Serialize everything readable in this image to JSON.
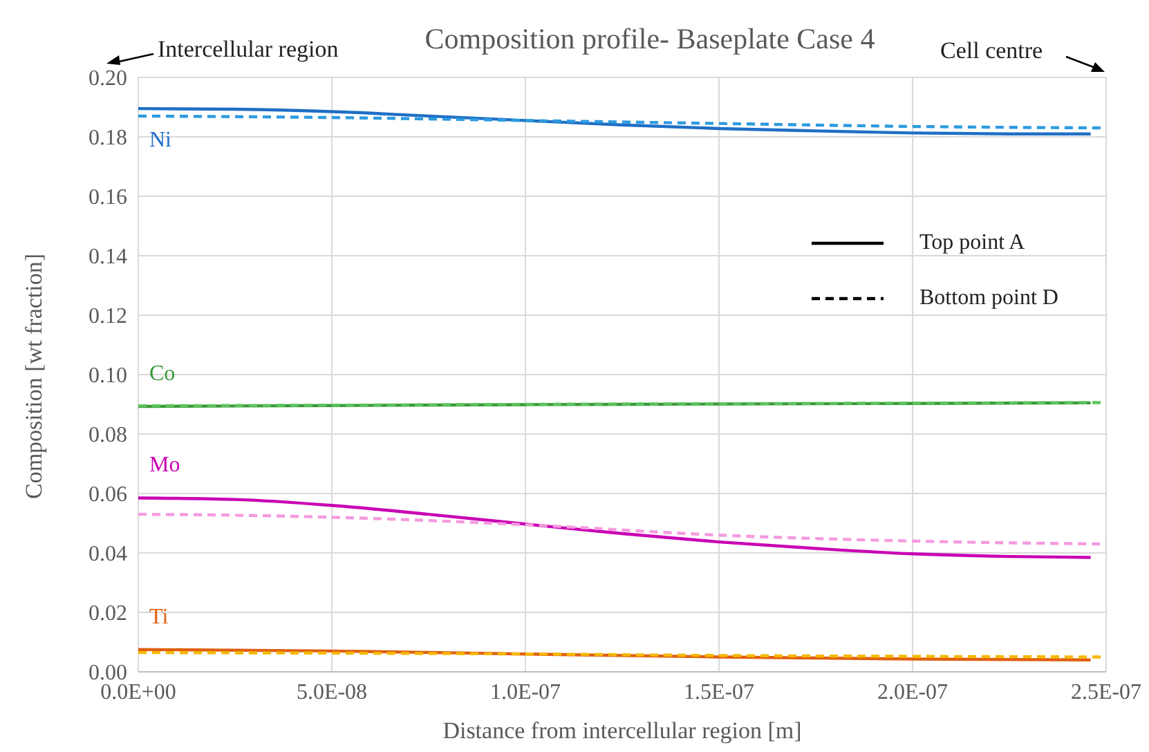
{
  "chart_data": {
    "type": "line",
    "title": "Composition profile- Baseplate Case 4",
    "xlabel": "Distance from intercellular region [m]",
    "ylabel": "Composition [wt fraction]",
    "xlim": [
      0,
      2.5e-07
    ],
    "xticks": [
      {
        "value": 0,
        "label": "0.0E+00"
      },
      {
        "value": 5e-08,
        "label": "5.0E-08"
      },
      {
        "value": 1e-07,
        "label": "1.0E-07"
      },
      {
        "value": 1.5e-07,
        "label": "1.5E-07"
      },
      {
        "value": 2e-07,
        "label": "2.0E-07"
      },
      {
        "value": 2.5e-07,
        "label": "2.5E-07"
      }
    ],
    "ylim": [
      0,
      0.2
    ],
    "yticks": [
      {
        "value": 0,
        "label": "0.00"
      },
      {
        "value": 0.02,
        "label": "0.02"
      },
      {
        "value": 0.04,
        "label": "0.04"
      },
      {
        "value": 0.06,
        "label": "0.06"
      },
      {
        "value": 0.08,
        "label": "0.08"
      },
      {
        "value": 0.1,
        "label": "0.10"
      },
      {
        "value": 0.12,
        "label": "0.12"
      },
      {
        "value": 0.14,
        "label": "0.14"
      },
      {
        "value": 0.16,
        "label": "0.16"
      },
      {
        "value": 0.18,
        "label": "0.18"
      },
      {
        "value": 0.2,
        "label": "0.20"
      }
    ],
    "grid": true,
    "legend": "right",
    "marker": "none",
    "series": [
      {
        "color": "#1f6fc5",
        "line_style": "solid",
        "x": [
          0,
          2.5e-08,
          5e-08,
          7.5e-08,
          1e-07,
          1.25e-07,
          1.5e-07,
          1.75e-07,
          2e-07,
          2.25e-07,
          2.46e-07
        ],
        "values": [
          0.1895,
          0.1893,
          0.1885,
          0.187,
          0.1855,
          0.184,
          0.1828,
          0.182,
          0.1813,
          0.181,
          0.181
        ]
      },
      {
        "color": "#2e9be0",
        "line_style": "dashed",
        "x": [
          0,
          5e-08,
          1e-07,
          1.5e-07,
          2e-07,
          2.5e-07
        ],
        "values": [
          0.187,
          0.1865,
          0.1855,
          0.1845,
          0.1835,
          0.183
        ]
      },
      {
        "color": "#3a9a3a",
        "line_style": "solid",
        "x": [
          0,
          5e-08,
          1e-07,
          1.5e-07,
          2e-07,
          2.46e-07
        ],
        "values": [
          0.0893,
          0.0896,
          0.0899,
          0.0901,
          0.0903,
          0.0905
        ]
      },
      {
        "color": "#5cc45c",
        "line_style": "dashed",
        "x": [
          0,
          5e-08,
          1e-07,
          1.5e-07,
          2e-07,
          2.5e-07
        ],
        "values": [
          0.0895,
          0.0897,
          0.09,
          0.0902,
          0.0904,
          0.0906
        ]
      },
      {
        "color": "#c800b4",
        "line_style": "solid",
        "x": [
          0,
          2.5e-08,
          5e-08,
          7.5e-08,
          1e-07,
          1.25e-07,
          1.5e-07,
          1.75e-07,
          2e-07,
          2.25e-07,
          2.46e-07
        ],
        "values": [
          0.0585,
          0.058,
          0.056,
          0.053,
          0.0497,
          0.0465,
          0.0437,
          0.0415,
          0.0397,
          0.0388,
          0.0385
        ]
      },
      {
        "color": "#f59ae0",
        "line_style": "dashed",
        "x": [
          0,
          2.5e-08,
          5e-08,
          1e-07,
          1.5e-07,
          2e-07,
          2.5e-07
        ],
        "values": [
          0.053,
          0.0527,
          0.052,
          0.0495,
          0.046,
          0.044,
          0.043
        ]
      },
      {
        "color": "#e06010",
        "line_style": "solid",
        "x": [
          0,
          5e-08,
          1e-07,
          1.5e-07,
          2e-07,
          2.46e-07
        ],
        "values": [
          0.0075,
          0.007,
          0.006,
          0.005,
          0.0043,
          0.004
        ]
      },
      {
        "color": "#f5b800",
        "line_style": "dashed",
        "x": [
          0,
          5e-08,
          1e-07,
          1.5e-07,
          2e-07,
          2.5e-07
        ],
        "values": [
          0.0065,
          0.0063,
          0.006,
          0.0055,
          0.0052,
          0.005
        ]
      },
      {
        "name": "Top point A",
        "color": "#000000",
        "line_style": "solid"
      },
      {
        "name": "Bottom point D",
        "color": "#000000",
        "line_style": "dashed"
      }
    ],
    "annotations": [
      "Ni",
      "Co",
      "Mo",
      "Ti",
      "Intercellular region",
      "Cell centre"
    ]
  }
}
